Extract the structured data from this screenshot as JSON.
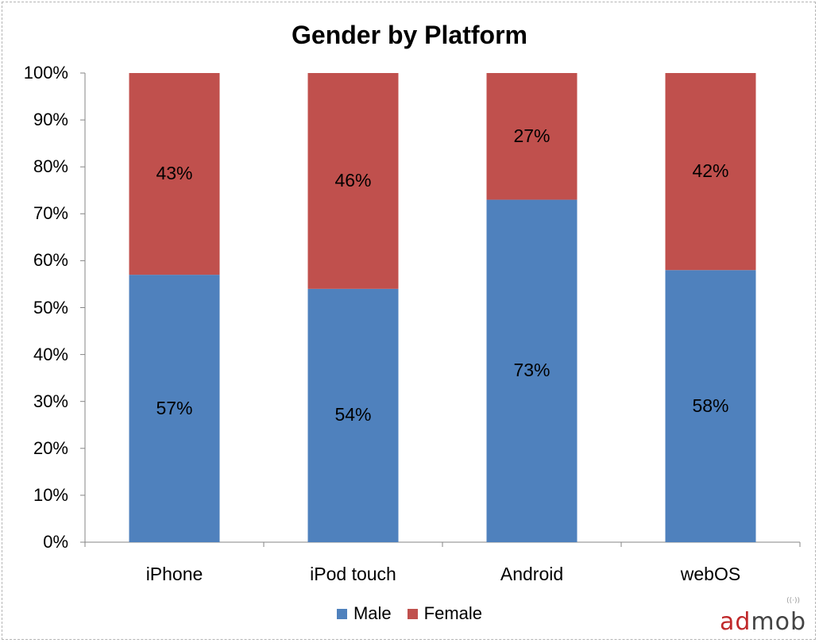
{
  "chart_data": {
    "type": "bar",
    "stacked": true,
    "title": "Gender by Platform",
    "categories": [
      "iPhone",
      "iPod touch",
      "Android",
      "webOS"
    ],
    "series": [
      {
        "name": "Male",
        "values": [
          57,
          54,
          73,
          58
        ],
        "labels": [
          "57%",
          "54%",
          "73%",
          "58%"
        ],
        "color": "#4f81bd"
      },
      {
        "name": "Female",
        "values": [
          43,
          46,
          27,
          42
        ],
        "labels": [
          "43%",
          "46%",
          "27%",
          "42%"
        ],
        "color": "#c0504d"
      }
    ],
    "ylim": [
      0,
      100
    ],
    "yticks": [
      "0%",
      "10%",
      "20%",
      "30%",
      "40%",
      "50%",
      "60%",
      "70%",
      "80%",
      "90%",
      "100%"
    ],
    "legend": "bottom",
    "grid": false
  },
  "logo": {
    "prefix": "ad",
    "suffix": "mob",
    "signal": "((·))"
  }
}
